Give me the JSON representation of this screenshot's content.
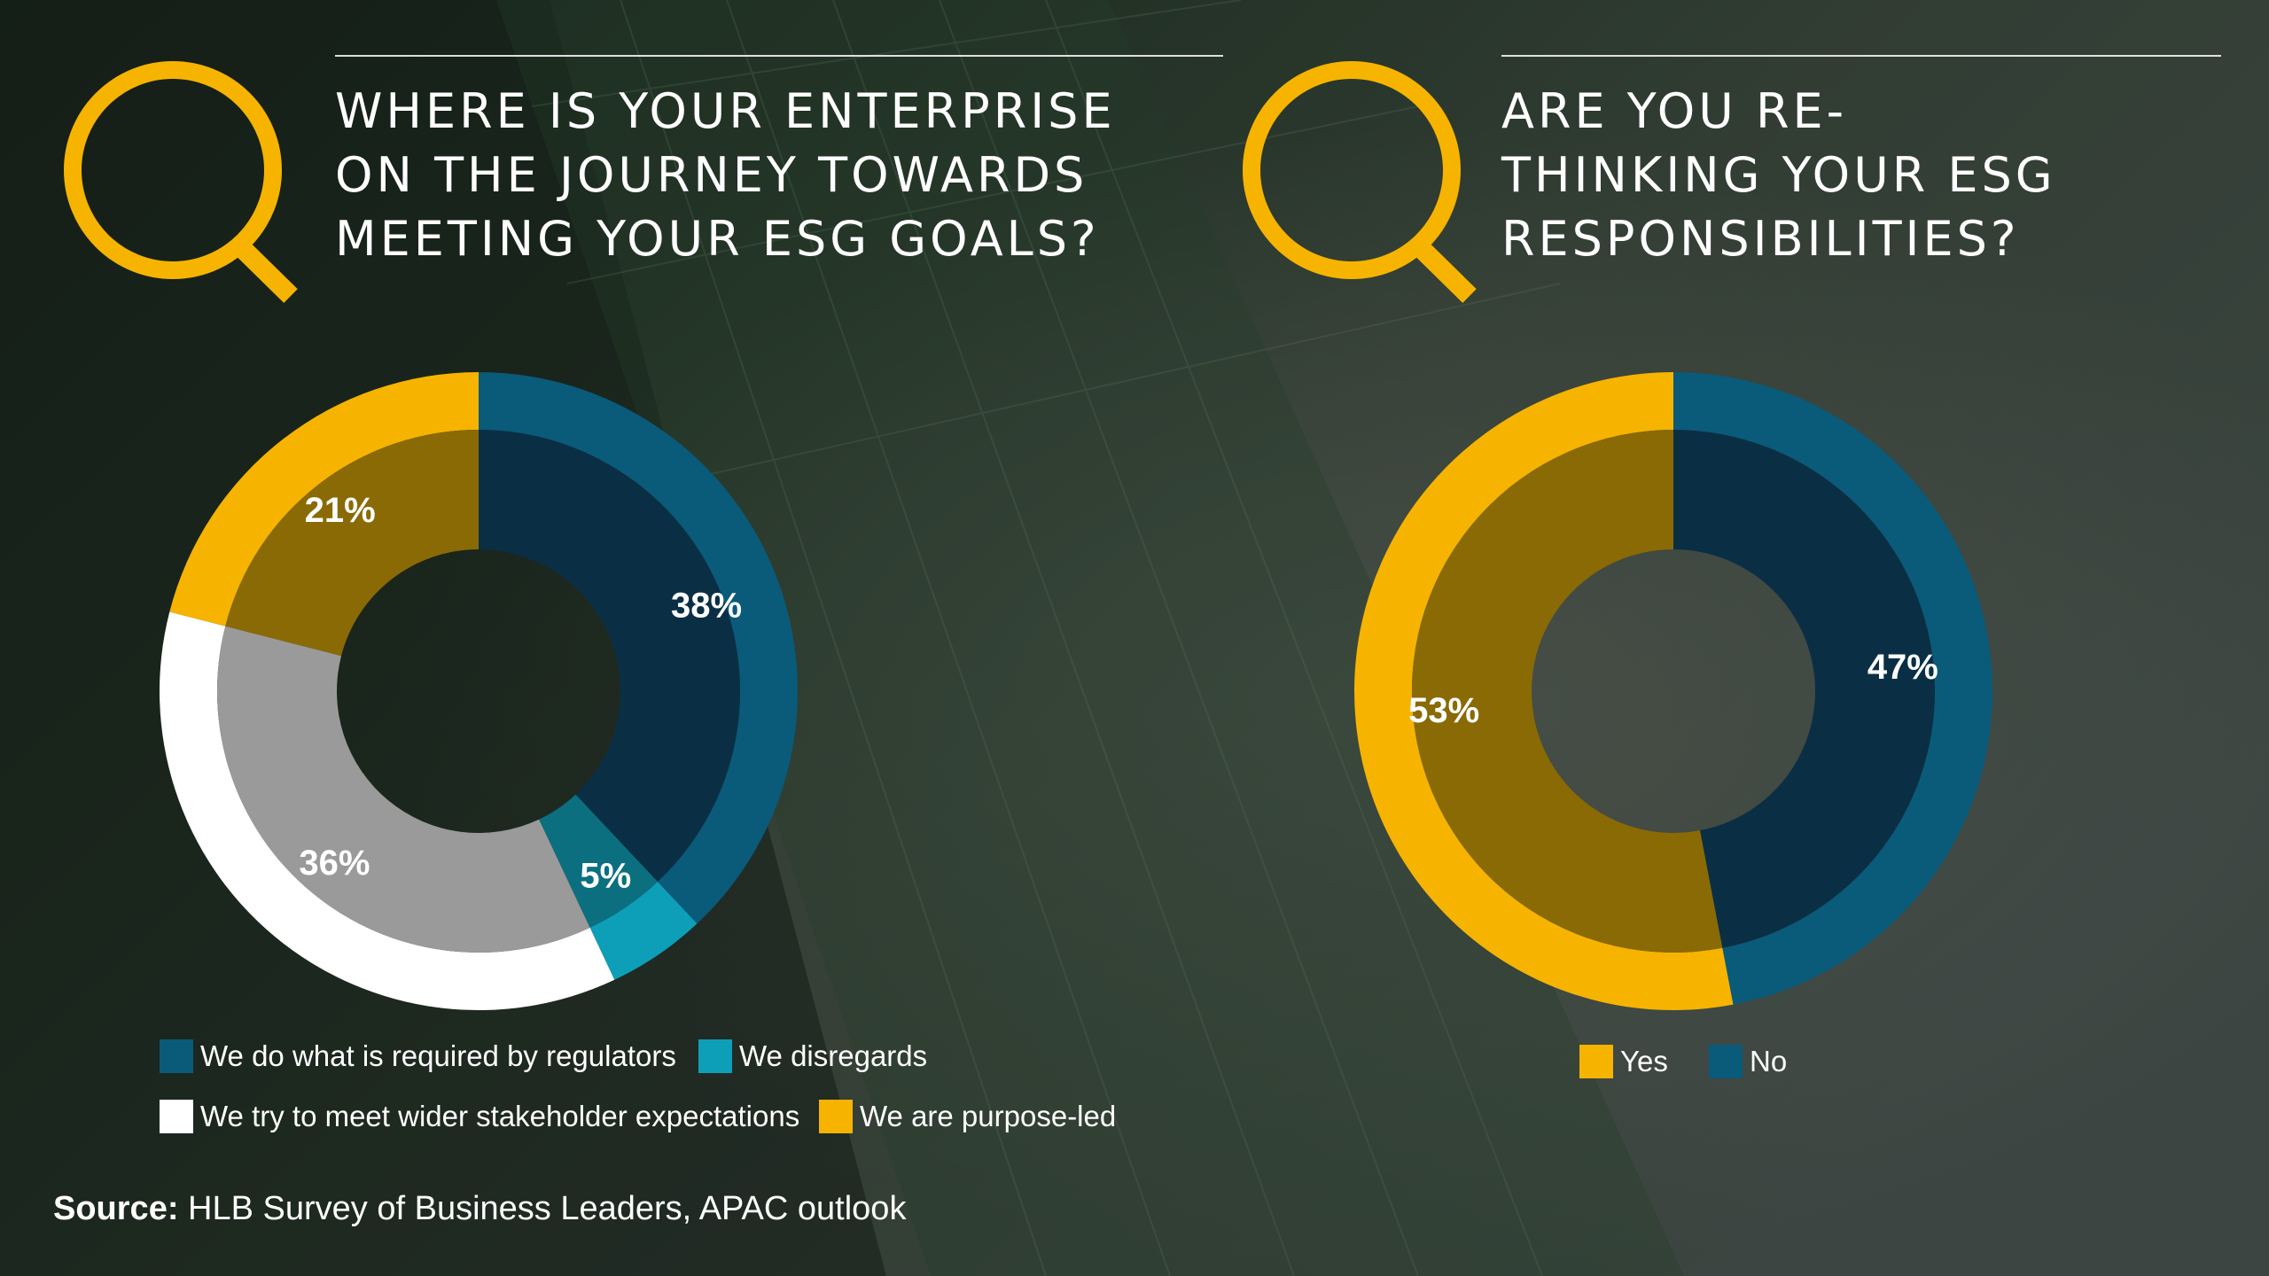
{
  "colors": {
    "accent_yellow": "#f6b400",
    "navy": "#063a52",
    "navy_dark": "#0a2f45",
    "blue": "#0a5a7a",
    "teal": "#0d9fb8",
    "teal_dark": "#0b6f80",
    "white": "#ffffff",
    "gray": "#9a9a9a",
    "olive": "#8a6a05"
  },
  "icons": {
    "question_mark": "q-letter-icon"
  },
  "questions": [
    {
      "text": "WHERE IS YOUR ENTERPRISE\nON THE JOURNEY TOWARDS\nMEETING YOUR ESG GOALS?"
    },
    {
      "text": "ARE YOU RE-\nTHINKING YOUR ESG\nRESPONSIBILITIES?"
    }
  ],
  "chart_data": [
    {
      "type": "pie",
      "title": "WHERE IS YOUR ENTERPRISE ON THE JOURNEY TOWARDS MEETING YOUR ESG GOALS?",
      "categories": [
        "We do what is required by regulators",
        "We disregards",
        "We try to meet wider stakeholder expectations",
        "We are purpose-led"
      ],
      "values": [
        38,
        5,
        36,
        21
      ],
      "labels": [
        "38%",
        "5%",
        "36%",
        "21%"
      ],
      "colors": [
        "#0a5a7a",
        "#0d9fb8",
        "#ffffff",
        "#f6b400"
      ],
      "inner_colors": [
        "#0a2f45",
        "#0b6f80",
        "#9a9a9a",
        "#8a6a05"
      ],
      "legend_position": "bottom"
    },
    {
      "type": "pie",
      "title": "ARE YOU RE-THINKING YOUR ESG RESPONSIBILITIES?",
      "categories": [
        "No",
        "Yes"
      ],
      "values": [
        47,
        53
      ],
      "labels": [
        "47%",
        "53%"
      ],
      "colors": [
        "#0a5a7a",
        "#f6b400"
      ],
      "inner_colors": [
        "#0a2f45",
        "#8a6a05"
      ],
      "legend_order": [
        "Yes",
        "No"
      ],
      "legend_position": "bottom"
    }
  ],
  "legends": [
    [
      {
        "label": "We do what is required by regulators",
        "color": "#0a5a7a"
      },
      {
        "label": "We disregards",
        "color": "#0d9fb8"
      },
      {
        "label": "We try to meet wider stakeholder expectations",
        "color": "#ffffff"
      },
      {
        "label": "We are purpose-led",
        "color": "#f6b400"
      }
    ],
    [
      {
        "label": "Yes",
        "color": "#f6b400"
      },
      {
        "label": "No",
        "color": "#0a5a7a"
      }
    ]
  ],
  "source": {
    "label": "Source:",
    "text": "HLB Survey of Business Leaders, APAC outlook"
  }
}
